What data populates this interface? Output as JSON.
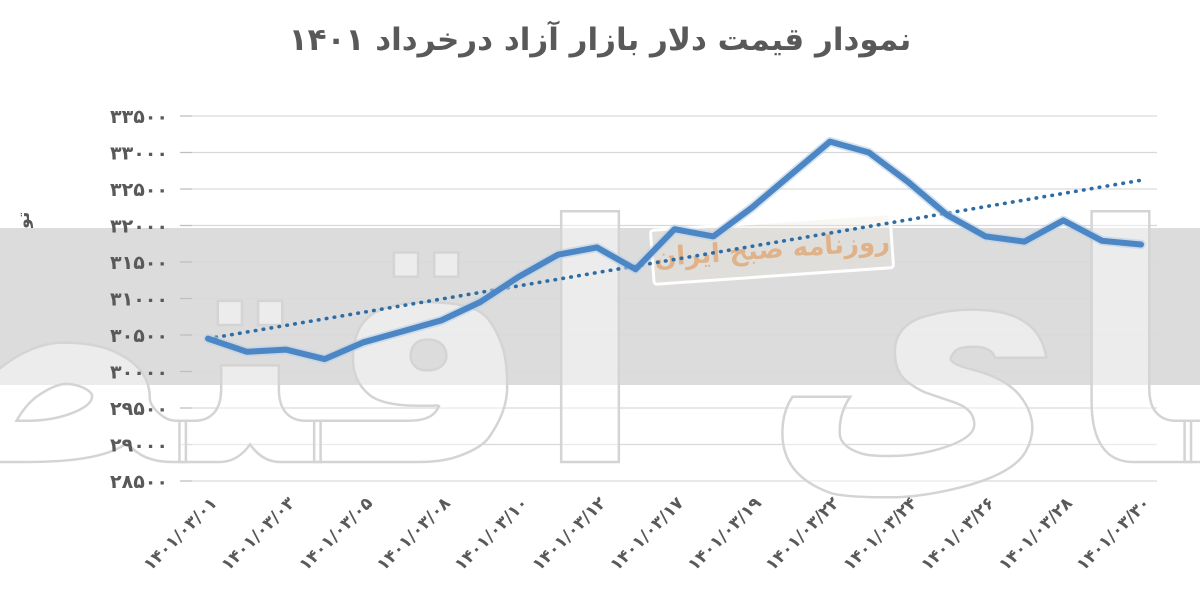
{
  "chart_data": {
    "type": "line",
    "title": "نمودار قیمت دلار بازار آزاد درخرداد ۱۴۰۱",
    "ylabel": "تومان",
    "ylim": [
      28500,
      33500
    ],
    "y_tick_step": 500,
    "y_tick_labels": [
      "۳۳۵۰۰",
      "۳۳۰۰۰",
      "۳۲۵۰۰",
      "۳۲۰۰۰",
      "۳۱۵۰۰",
      "۳۱۰۰۰",
      "۳۰۵۰۰",
      "۳۰۰۰۰",
      "۲۹۵۰۰",
      "۲۹۰۰۰",
      "۲۸۵۰۰"
    ],
    "x_tick_labels": [
      "۱۴۰۱/۰۳/۰۱",
      "۱۴۰۱/۰۳/۰۳",
      "۱۴۰۱/۰۳/۰۵",
      "۱۴۰۱/۰۳/۰۸",
      "۱۴۰۱/۰۳/۱۰",
      "۱۴۰۱/۰۳/۱۲",
      "۱۴۰۱/۰۳/۱۷",
      "۱۴۰۱/۰۳/۱۹",
      "۱۴۰۱/۰۳/۲۲",
      "۱۴۰۱/۰۳/۲۴",
      "۱۴۰۱/۰۳/۲۶",
      "۱۴۰۱/۰۳/۲۸",
      "۱۴۰۱/۰۳/۳۰"
    ],
    "x_label_every": 2,
    "grid": true,
    "legend_position": "none",
    "series": [
      {
        "id": "price-line",
        "style": "solid",
        "color": "#4d86c4",
        "values": [
          30450,
          30270,
          30300,
          30170,
          30400,
          30550,
          30700,
          30950,
          31300,
          31600,
          31700,
          31400,
          31950,
          31850,
          32250,
          32700,
          33150,
          33000,
          32600,
          32150,
          31850,
          31780,
          32070,
          31790,
          31740
        ]
      },
      {
        "id": "trend-line",
        "style": "dotted-linear",
        "color": "#2e6da4",
        "start_value": 30450,
        "end_value": 32620
      }
    ]
  },
  "colors": {
    "title_text": "#595959",
    "axis_text": "#595959",
    "gridline": "#d9d9d9",
    "tick": "#bfbfbf"
  },
  "watermark": {
    "band_color": "#dcdcdc",
    "main_text": "دنیای اقتصاد",
    "badge_text": "روزنامه صبح ایران",
    "badge_text_color": "#dfb28a"
  }
}
